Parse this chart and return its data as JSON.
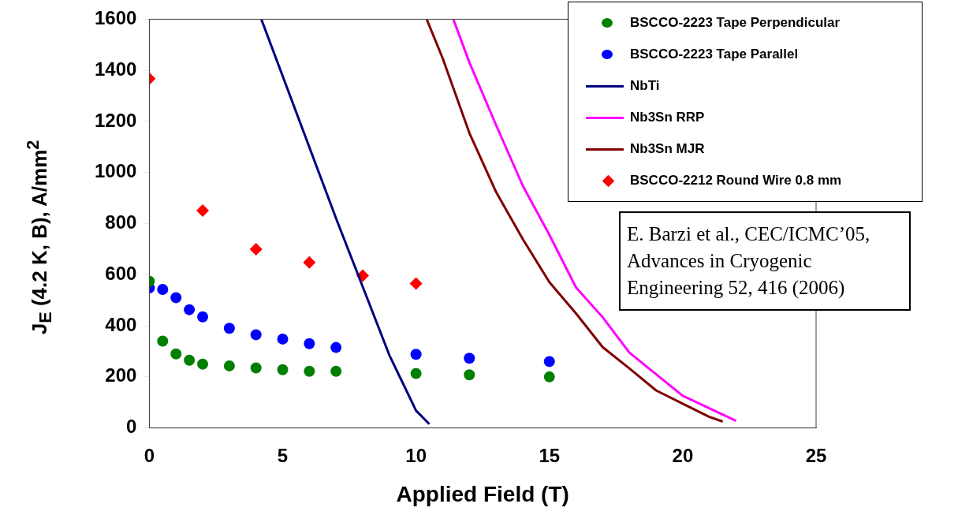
{
  "chart_data": {
    "type": "scatter",
    "xlabel": "Applied Field (T)",
    "ylabel": "J$_{E}$ (4.2 K, B), A/mm$^{2}$",
    "xlim": [
      0,
      25
    ],
    "xticks": [
      0,
      5,
      10,
      15,
      20,
      25
    ],
    "ylim": [
      0,
      1600
    ],
    "yticks": [
      0,
      200,
      400,
      600,
      800,
      1000,
      1200,
      1400,
      1600
    ],
    "grid": false,
    "legend": "top right",
    "series": [
      {
        "name": "BSCCO-2223 Tape Perpendicular",
        "type": "scatter",
        "marker": "circle",
        "color": "#008000",
        "x": [
          0,
          0.5,
          1,
          1.5,
          2,
          3,
          4,
          5,
          6,
          7,
          10,
          12,
          15
        ],
        "values": [
          574,
          340,
          290,
          265,
          250,
          243,
          235,
          228,
          222,
          222,
          213,
          208,
          200
        ]
      },
      {
        "name": "BSCCO-2223 Tape Parallel",
        "type": "scatter",
        "marker": "circle",
        "color": "#0000ff",
        "x": [
          0,
          0.5,
          1,
          1.5,
          2,
          3,
          4,
          5,
          6,
          7,
          10,
          12,
          15
        ],
        "values": [
          548,
          542,
          510,
          463,
          435,
          390,
          365,
          348,
          330,
          315,
          288,
          273,
          260
        ]
      },
      {
        "name": "NbTi",
        "type": "line",
        "marker": "none",
        "color": "#000080",
        "x": [
          4.2,
          7,
          9,
          10,
          10.5
        ],
        "values": [
          1600,
          821,
          285,
          68,
          15
        ]
      },
      {
        "name": "Nb3Sn RRP",
        "type": "line",
        "marker": "none",
        "color": "#ff00ff",
        "x": [
          11.4,
          12,
          13,
          14,
          15,
          16,
          17,
          18,
          20,
          22
        ],
        "values": [
          1600,
          1431,
          1186,
          949,
          756,
          550,
          433,
          295,
          126,
          28
        ]
      },
      {
        "name": "Nb3Sn MJR",
        "type": "line",
        "marker": "none",
        "color": "#800000",
        "x": [
          10.4,
          11,
          12,
          13,
          14,
          15,
          16,
          17,
          18,
          19,
          20,
          21,
          21.5
        ],
        "values": [
          1600,
          1447,
          1155,
          924,
          740,
          571,
          448,
          316,
          233,
          147,
          95,
          43,
          25
        ]
      },
      {
        "name": "BSCCO-2212 Round Wire 0.8 mm",
        "type": "scatter",
        "marker": "diamond",
        "color": "#ff0000",
        "x": [
          0,
          2,
          4,
          6,
          8,
          10
        ],
        "values": [
          1367,
          851,
          700,
          648,
          596,
          565
        ]
      }
    ],
    "annotations": [
      "E. Barzi et al., CEC/ICMC’05, Advances in Cryogenic Engineering 52, 416 (2006)"
    ]
  }
}
